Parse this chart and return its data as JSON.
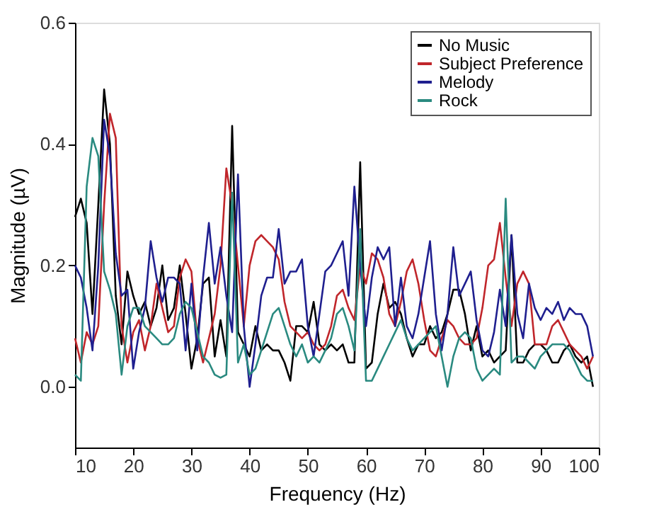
{
  "chart_data": {
    "type": "line",
    "xlabel": "Frequency (Hz)",
    "ylabel": "Magnitude (µV)",
    "x": [
      10,
      11,
      12,
      13,
      14,
      15,
      16,
      17,
      18,
      19,
      20,
      21,
      22,
      23,
      24,
      25,
      26,
      27,
      28,
      29,
      30,
      31,
      32,
      33,
      34,
      35,
      36,
      37,
      38,
      39,
      40,
      41,
      42,
      43,
      44,
      45,
      46,
      47,
      48,
      49,
      50,
      51,
      52,
      53,
      54,
      55,
      56,
      57,
      58,
      59,
      60,
      61,
      62,
      63,
      64,
      65,
      66,
      67,
      68,
      69,
      70,
      71,
      72,
      73,
      74,
      75,
      76,
      77,
      78,
      79,
      80,
      81,
      82,
      83,
      84,
      85,
      86,
      87,
      88,
      89,
      90,
      91,
      92,
      93,
      94,
      95,
      96,
      97,
      98,
      99
    ],
    "series": [
      {
        "name": "No Music",
        "color": "#000000",
        "values": [
          0.28,
          0.31,
          0.27,
          0.12,
          0.3,
          0.49,
          0.4,
          0.15,
          0.07,
          0.19,
          0.15,
          0.12,
          0.14,
          0.1,
          0.13,
          0.2,
          0.11,
          0.13,
          0.2,
          0.12,
          0.03,
          0.08,
          0.17,
          0.18,
          0.05,
          0.11,
          0.05,
          0.43,
          0.09,
          0.07,
          0.05,
          0.1,
          0.06,
          0.07,
          0.06,
          0.06,
          0.04,
          0.01,
          0.1,
          0.1,
          0.09,
          0.14,
          0.07,
          0.06,
          0.07,
          0.06,
          0.07,
          0.04,
          0.04,
          0.37,
          0.03,
          0.04,
          0.12,
          0.17,
          0.13,
          0.14,
          0.12,
          0.08,
          0.05,
          0.07,
          0.07,
          0.1,
          0.08,
          0.09,
          0.12,
          0.16,
          0.16,
          0.12,
          0.06,
          0.1,
          0.05,
          0.06,
          0.04,
          0.05,
          0.06,
          0.25,
          0.04,
          0.04,
          0.06,
          0.07,
          0.07,
          0.06,
          0.04,
          0.04,
          0.06,
          0.07,
          0.05,
          0.04,
          0.05,
          0.0
        ]
      },
      {
        "name": "Subject Preference",
        "color": "#c0262b",
        "values": [
          0.08,
          0.04,
          0.09,
          0.07,
          0.1,
          0.3,
          0.45,
          0.41,
          0.1,
          0.04,
          0.09,
          0.11,
          0.06,
          0.1,
          0.17,
          0.13,
          0.09,
          0.1,
          0.18,
          0.21,
          0.19,
          0.08,
          0.04,
          0.08,
          0.12,
          0.2,
          0.36,
          0.3,
          0.2,
          0.1,
          0.2,
          0.24,
          0.25,
          0.24,
          0.23,
          0.21,
          0.14,
          0.1,
          0.09,
          0.08,
          0.09,
          0.07,
          0.06,
          0.07,
          0.1,
          0.15,
          0.16,
          0.13,
          0.11,
          0.2,
          0.17,
          0.22,
          0.21,
          0.18,
          0.12,
          0.1,
          0.14,
          0.19,
          0.21,
          0.17,
          0.11,
          0.06,
          0.05,
          0.08,
          0.11,
          0.1,
          0.08,
          0.07,
          0.07,
          0.08,
          0.13,
          0.2,
          0.21,
          0.27,
          0.18,
          0.1,
          0.17,
          0.19,
          0.17,
          0.07,
          0.07,
          0.07,
          0.1,
          0.11,
          0.09,
          0.07,
          0.06,
          0.05,
          0.03,
          0.05
        ]
      },
      {
        "name": "Melody",
        "color": "#1f1f8f",
        "values": [
          0.2,
          0.18,
          0.13,
          0.06,
          0.2,
          0.44,
          0.38,
          0.22,
          0.15,
          0.16,
          0.03,
          0.09,
          0.13,
          0.24,
          0.18,
          0.14,
          0.18,
          0.18,
          0.17,
          0.06,
          0.17,
          0.06,
          0.18,
          0.27,
          0.17,
          0.23,
          0.15,
          0.09,
          0.35,
          0.1,
          0.0,
          0.07,
          0.15,
          0.18,
          0.18,
          0.26,
          0.17,
          0.19,
          0.19,
          0.21,
          0.1,
          0.05,
          0.12,
          0.19,
          0.2,
          0.22,
          0.24,
          0.15,
          0.33,
          0.2,
          0.1,
          0.18,
          0.23,
          0.21,
          0.23,
          0.1,
          0.18,
          0.1,
          0.08,
          0.12,
          0.18,
          0.24,
          0.12,
          0.06,
          0.12,
          0.23,
          0.15,
          0.17,
          0.19,
          0.11,
          0.06,
          0.05,
          0.09,
          0.16,
          0.1,
          0.25,
          0.12,
          0.08,
          0.17,
          0.13,
          0.11,
          0.13,
          0.12,
          0.14,
          0.11,
          0.13,
          0.12,
          0.12,
          0.1,
          0.05
        ]
      },
      {
        "name": "Rock",
        "color": "#2a8a80",
        "values": [
          0.02,
          0.01,
          0.33,
          0.41,
          0.38,
          0.19,
          0.16,
          0.12,
          0.02,
          0.1,
          0.13,
          0.13,
          0.1,
          0.09,
          0.08,
          0.07,
          0.07,
          0.08,
          0.12,
          0.14,
          0.13,
          0.09,
          0.05,
          0.04,
          0.02,
          0.015,
          0.02,
          0.32,
          0.04,
          0.07,
          0.02,
          0.03,
          0.06,
          0.09,
          0.12,
          0.13,
          0.1,
          0.07,
          0.05,
          0.07,
          0.04,
          0.05,
          0.04,
          0.06,
          0.08,
          0.12,
          0.13,
          0.1,
          0.06,
          0.26,
          0.01,
          0.01,
          0.03,
          0.05,
          0.07,
          0.09,
          0.11,
          0.08,
          0.06,
          0.07,
          0.08,
          0.09,
          0.1,
          0.05,
          0.0,
          0.05,
          0.08,
          0.09,
          0.08,
          0.03,
          0.01,
          0.02,
          0.03,
          0.02,
          0.31,
          0.04,
          0.05,
          0.05,
          0.04,
          0.03,
          0.05,
          0.06,
          0.07,
          0.07,
          0.07,
          0.06,
          0.04,
          0.02,
          0.01,
          0.01
        ]
      }
    ],
    "xlim": [
      10,
      100
    ],
    "xticks": [
      10,
      20,
      30,
      40,
      50,
      60,
      70,
      80,
      90,
      100
    ],
    "ylim": [
      -0.1,
      0.6
    ],
    "yticks": [
      {
        "value": 0,
        "label": "0.0"
      },
      0.2,
      0.4,
      0.6
    ],
    "legend": "top right",
    "grid": false,
    "line_style": "solid",
    "marker": "none"
  }
}
